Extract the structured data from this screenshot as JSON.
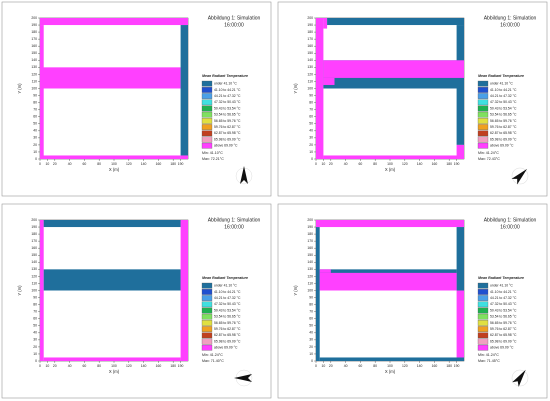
{
  "legend": {
    "classes": [
      {
        "label": "under 41.10 °C",
        "color": "#1f6f9c"
      },
      {
        "label": "41.10 to 44.21 °C",
        "color": "#2050d0"
      },
      {
        "label": "44.21 to 47.32 °C",
        "color": "#4aa0e8"
      },
      {
        "label": "47.32 to 50.43 °C",
        "color": "#40e0e0"
      },
      {
        "label": "50.43 to 53.54 °C",
        "color": "#20b050"
      },
      {
        "label": "53.54 to 56.65 °C",
        "color": "#80e060"
      },
      {
        "label": "56.65 to 59.76 °C",
        "color": "#e0e040"
      },
      {
        "label": "59.76 to 62.87 °C",
        "color": "#f0a020"
      },
      {
        "label": "62.87 to 65.98 °C",
        "color": "#c04020"
      },
      {
        "label": "65.98 to 69.09 °C",
        "color": "#f0a0c0"
      },
      {
        "label": "above 69.09 °C",
        "color": "#ff40ff"
      }
    ]
  },
  "axes": {
    "xlabel": "X (m)",
    "ylabel": "Y (m)",
    "xlim": [
      0,
      200
    ],
    "ylim": [
      0,
      200
    ],
    "xticks": [
      0,
      10,
      20,
      40,
      60,
      80,
      100,
      120,
      140,
      160,
      180,
      190
    ],
    "yticks": [
      0,
      10,
      20,
      30,
      40,
      50,
      60,
      70,
      80,
      90,
      100,
      110,
      120,
      130,
      140,
      150,
      160,
      170,
      180,
      190,
      200
    ]
  },
  "panels": [
    {
      "title": "Abbildung 1: Simulation",
      "time": "16:00:00",
      "legend_title": "Mean Radiant Temperature",
      "min": "Min: 41.10°C",
      "max": "Max: 72.21°C",
      "regions": [
        [
          0,
          190,
          200,
          200,
          10
        ],
        [
          0,
          0,
          5,
          190,
          10
        ],
        [
          0,
          0,
          190,
          5,
          10
        ],
        [
          0,
          100,
          190,
          130,
          10
        ],
        [
          190,
          5,
          200,
          190,
          0
        ],
        [
          190,
          0,
          200,
          5,
          10
        ]
      ]
    },
    {
      "title": "Abbildung 1: Simulation",
      "time": "16:00:00",
      "legend_title": "Mean Radiant Temperature",
      "min": "Min: 41.24°C",
      "max": "Max: 72.43°C",
      "regions": [
        [
          0,
          0,
          10,
          200,
          10
        ],
        [
          10,
          185,
          15,
          200,
          10
        ],
        [
          15,
          190,
          200,
          200,
          0
        ],
        [
          190,
          20,
          200,
          190,
          0
        ],
        [
          10,
          0,
          200,
          5,
          10
        ],
        [
          190,
          0,
          200,
          20,
          10
        ],
        [
          10,
          100,
          200,
          140,
          0
        ],
        [
          10,
          115,
          200,
          140,
          10
        ],
        [
          10,
          105,
          25,
          115,
          10
        ]
      ]
    },
    {
      "title": "Abbildung 1: Simulation",
      "time": "16:00:00",
      "legend_title": "Mean Radiant Temperature",
      "min": "Min: 41.24°C",
      "max": "Max: 71.40°C",
      "regions": [
        [
          0,
          0,
          5,
          200,
          10
        ],
        [
          190,
          0,
          200,
          200,
          10
        ],
        [
          5,
          190,
          190,
          200,
          0
        ],
        [
          5,
          0,
          190,
          5,
          10
        ],
        [
          5,
          100,
          190,
          130,
          0
        ]
      ]
    },
    {
      "title": "Abbildung 1: Simulation",
      "time": "16:00:00",
      "legend_title": "Mean Radiant Temperature",
      "min": "Min: 41.24°C",
      "max": "Max: 71.45°C",
      "regions": [
        [
          0,
          0,
          5,
          190,
          0
        ],
        [
          0,
          190,
          200,
          200,
          10
        ],
        [
          190,
          100,
          200,
          190,
          0
        ],
        [
          190,
          5,
          200,
          100,
          10
        ],
        [
          5,
          0,
          200,
          5,
          0
        ],
        [
          5,
          100,
          190,
          130,
          0
        ],
        [
          5,
          100,
          190,
          125,
          10
        ],
        [
          5,
          125,
          20,
          130,
          10
        ]
      ]
    }
  ]
}
